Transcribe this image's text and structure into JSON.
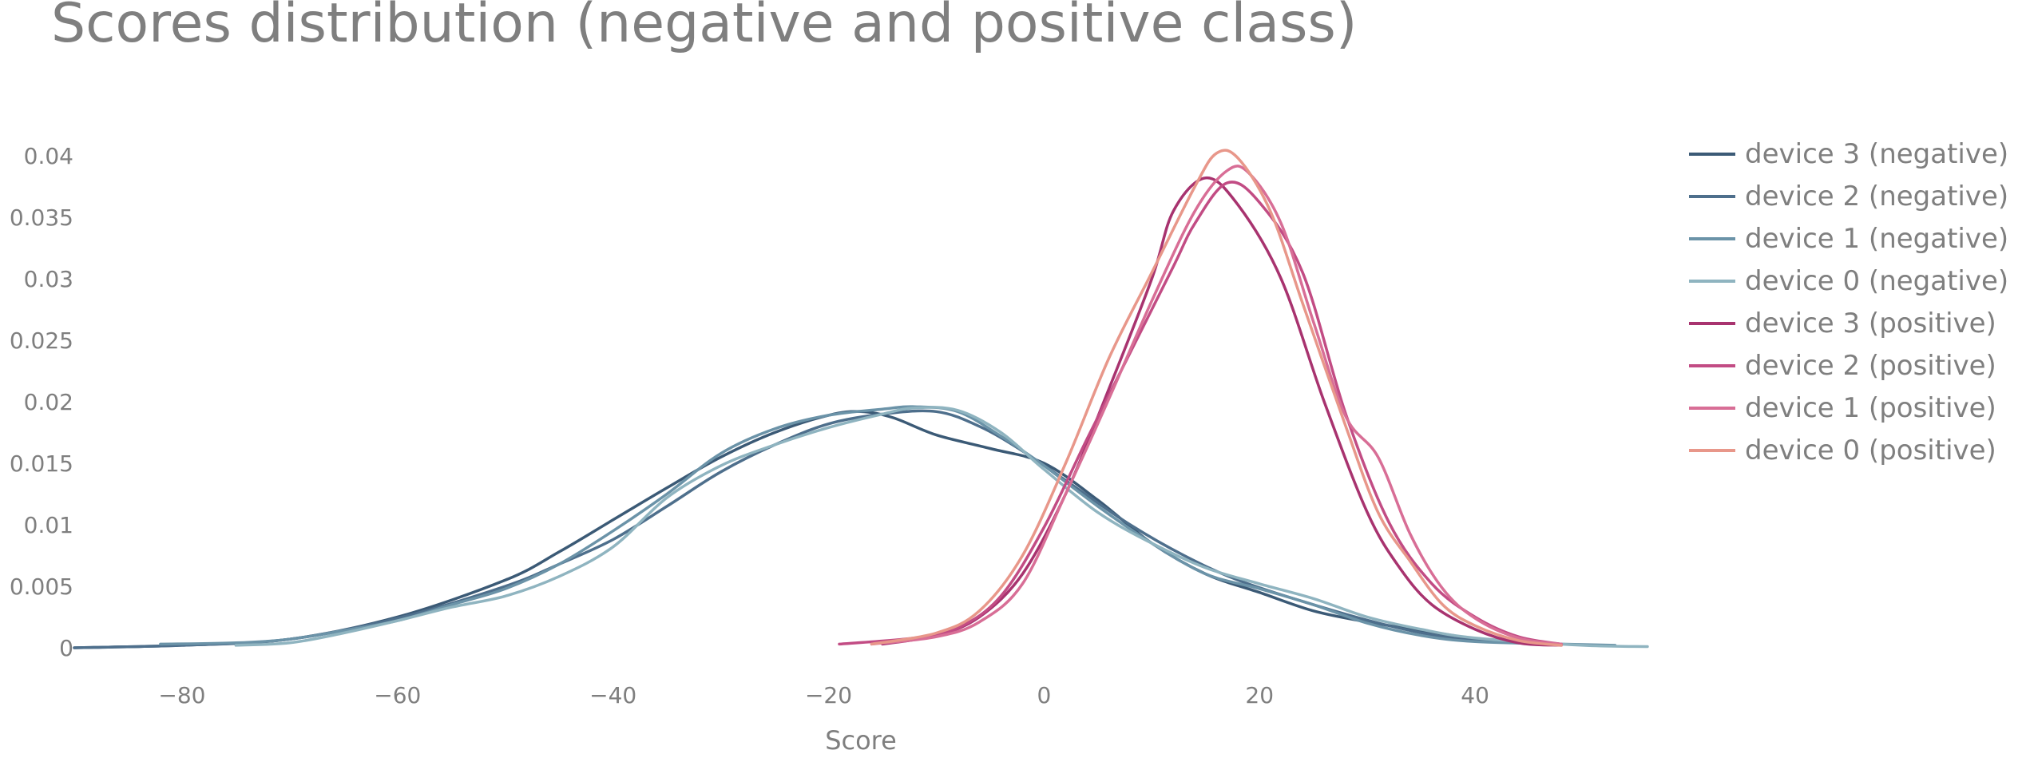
{
  "chart_data": {
    "type": "line",
    "title": "Scores distribution (negative and positive class)",
    "xlabel": "Score",
    "ylabel": "",
    "xlim": [
      -90,
      56
    ],
    "ylim": [
      0,
      0.04
    ],
    "x_ticks": [
      -80,
      -60,
      -40,
      -20,
      0,
      20,
      40
    ],
    "x_tick_labels": [
      "−80",
      "−60",
      "−40",
      "−20",
      "0",
      "20",
      "40"
    ],
    "y_ticks": [
      0,
      0.005,
      0.01,
      0.015,
      0.02,
      0.025,
      0.03,
      0.035,
      0.04
    ],
    "y_tick_labels": [
      "0",
      "0.005",
      "0.01",
      "0.015",
      "0.02",
      "0.025",
      "0.03",
      "0.035",
      "0.04"
    ],
    "grid": false,
    "legend_position": "top-right",
    "series": [
      {
        "name": "device 3 (negative)",
        "color": "#3b5a76",
        "points": [
          [
            -90,
            0
          ],
          [
            -80,
            0.0002
          ],
          [
            -70,
            0.0007
          ],
          [
            -60,
            0.0025
          ],
          [
            -50,
            0.0055
          ],
          [
            -45,
            0.0078
          ],
          [
            -40,
            0.0104
          ],
          [
            -35,
            0.013
          ],
          [
            -30,
            0.0155
          ],
          [
            -25,
            0.0175
          ],
          [
            -20,
            0.0189
          ],
          [
            -17,
            0.0192
          ],
          [
            -14,
            0.0187
          ],
          [
            -10,
            0.0173
          ],
          [
            -5,
            0.0162
          ],
          [
            0,
            0.015
          ],
          [
            5,
            0.012
          ],
          [
            10,
            0.0085
          ],
          [
            15,
            0.006
          ],
          [
            20,
            0.0045
          ],
          [
            25,
            0.003
          ],
          [
            30,
            0.0021
          ],
          [
            35,
            0.0014
          ],
          [
            38,
            0.001
          ]
        ]
      },
      {
        "name": "device 2 (negative)",
        "color": "#4e6f8c",
        "points": [
          [
            -90,
            0
          ],
          [
            -80,
            0.0002
          ],
          [
            -70,
            0.0007
          ],
          [
            -60,
            0.0024
          ],
          [
            -50,
            0.005
          ],
          [
            -45,
            0.0068
          ],
          [
            -40,
            0.0088
          ],
          [
            -35,
            0.0115
          ],
          [
            -30,
            0.0143
          ],
          [
            -25,
            0.0165
          ],
          [
            -20,
            0.0182
          ],
          [
            -15,
            0.019
          ],
          [
            -10,
            0.0192
          ],
          [
            -6,
            0.018
          ],
          [
            -2,
            0.016
          ],
          [
            3,
            0.013
          ],
          [
            8,
            0.01
          ],
          [
            13,
            0.0075
          ],
          [
            18,
            0.0055
          ],
          [
            25,
            0.0035
          ],
          [
            32,
            0.0018
          ],
          [
            38,
            0.0008
          ],
          [
            45,
            0.0004
          ],
          [
            48,
            0.0003
          ]
        ]
      },
      {
        "name": "device 1 (negative)",
        "color": "#6b93a8",
        "points": [
          [
            -82,
            0.0003
          ],
          [
            -75,
            0.0004
          ],
          [
            -70,
            0.0007
          ],
          [
            -65,
            0.0014
          ],
          [
            -60,
            0.0022
          ],
          [
            -55,
            0.0035
          ],
          [
            -50,
            0.0048
          ],
          [
            -45,
            0.0068
          ],
          [
            -40,
            0.0095
          ],
          [
            -35,
            0.0125
          ],
          [
            -30,
            0.0158
          ],
          [
            -25,
            0.0178
          ],
          [
            -20,
            0.0189
          ],
          [
            -15,
            0.0194
          ],
          [
            -12,
            0.0196
          ],
          [
            -8,
            0.0192
          ],
          [
            -4,
            0.0172
          ],
          [
            0,
            0.0148
          ],
          [
            5,
            0.0115
          ],
          [
            10,
            0.0085
          ],
          [
            15,
            0.006
          ],
          [
            20,
            0.0048
          ],
          [
            25,
            0.0035
          ],
          [
            30,
            0.002
          ],
          [
            35,
            0.001
          ],
          [
            40,
            0.0005
          ],
          [
            48,
            0.0003
          ],
          [
            53,
            0.0002
          ]
        ]
      },
      {
        "name": "device 0 (negative)",
        "color": "#8fb4c0",
        "points": [
          [
            -75,
            0.0002
          ],
          [
            -70,
            0.0004
          ],
          [
            -65,
            0.0012
          ],
          [
            -60,
            0.0022
          ],
          [
            -55,
            0.0033
          ],
          [
            -50,
            0.0042
          ],
          [
            -45,
            0.0058
          ],
          [
            -40,
            0.0082
          ],
          [
            -35,
            0.0122
          ],
          [
            -30,
            0.0148
          ],
          [
            -25,
            0.0165
          ],
          [
            -20,
            0.0179
          ],
          [
            -15,
            0.019
          ],
          [
            -12,
            0.0195
          ],
          [
            -8,
            0.0193
          ],
          [
            -4,
            0.0175
          ],
          [
            0,
            0.0145
          ],
          [
            5,
            0.011
          ],
          [
            10,
            0.0085
          ],
          [
            15,
            0.0065
          ],
          [
            20,
            0.0052
          ],
          [
            25,
            0.004
          ],
          [
            30,
            0.0025
          ],
          [
            35,
            0.0015
          ],
          [
            40,
            0.0008
          ],
          [
            50,
            0.0002
          ],
          [
            56,
            0.0001
          ]
        ]
      },
      {
        "name": "device 3 (positive)",
        "color": "#a8336f",
        "points": [
          [
            -15,
            0.0003
          ],
          [
            -10,
            0.001
          ],
          [
            -6,
            0.0025
          ],
          [
            -2,
            0.006
          ],
          [
            2,
            0.0125
          ],
          [
            6,
            0.021
          ],
          [
            10,
            0.03
          ],
          [
            12,
            0.0355
          ],
          [
            15,
            0.0382
          ],
          [
            18,
            0.036
          ],
          [
            22,
            0.03
          ],
          [
            26,
            0.02
          ],
          [
            30,
            0.011
          ],
          [
            33,
            0.0065
          ],
          [
            36,
            0.0035
          ],
          [
            40,
            0.0015
          ],
          [
            44,
            0.0004
          ],
          [
            48,
            0.0002
          ]
        ]
      },
      {
        "name": "device 2 (positive)",
        "color": "#c24c84",
        "points": [
          [
            -19,
            0.0003
          ],
          [
            -12,
            0.0008
          ],
          [
            -8,
            0.0016
          ],
          [
            -4,
            0.0042
          ],
          [
            0,
            0.0098
          ],
          [
            4,
            0.017
          ],
          [
            8,
            0.024
          ],
          [
            12,
            0.031
          ],
          [
            14,
            0.0345
          ],
          [
            17,
            0.0378
          ],
          [
            20,
            0.0362
          ],
          [
            24,
            0.0305
          ],
          [
            28,
            0.019
          ],
          [
            32,
            0.0102
          ],
          [
            36,
            0.0052
          ],
          [
            40,
            0.0025
          ],
          [
            44,
            0.0009
          ],
          [
            48,
            0.0003
          ]
        ]
      },
      {
        "name": "device 1 (positive)",
        "color": "#d86e96",
        "points": [
          [
            -16,
            0.0003
          ],
          [
            -10,
            0.0009
          ],
          [
            -6,
            0.0021
          ],
          [
            -2,
            0.0052
          ],
          [
            2,
            0.0125
          ],
          [
            6,
            0.0202
          ],
          [
            10,
            0.0282
          ],
          [
            14,
            0.0355
          ],
          [
            17,
            0.0388
          ],
          [
            19,
            0.0386
          ],
          [
            22,
            0.0345
          ],
          [
            25,
            0.0265
          ],
          [
            28,
            0.0188
          ],
          [
            31,
            0.0155
          ],
          [
            34,
            0.0092
          ],
          [
            37,
            0.0048
          ],
          [
            40,
            0.0024
          ],
          [
            44,
            0.0008
          ],
          [
            48,
            0.0003
          ]
        ]
      },
      {
        "name": "device 0 (positive)",
        "color": "#e8978a",
        "points": [
          [
            -16,
            0.0003
          ],
          [
            -10,
            0.0012
          ],
          [
            -6,
            0.003
          ],
          [
            -2,
            0.0075
          ],
          [
            2,
            0.015
          ],
          [
            6,
            0.0235
          ],
          [
            10,
            0.0305
          ],
          [
            14,
            0.0375
          ],
          [
            16,
            0.0402
          ],
          [
            18,
            0.0398
          ],
          [
            21,
            0.0355
          ],
          [
            24,
            0.028
          ],
          [
            28,
            0.018
          ],
          [
            31,
            0.011
          ],
          [
            34,
            0.007
          ],
          [
            37,
            0.0035
          ],
          [
            40,
            0.0018
          ],
          [
            44,
            0.0006
          ],
          [
            48,
            0.0002
          ]
        ]
      }
    ]
  }
}
